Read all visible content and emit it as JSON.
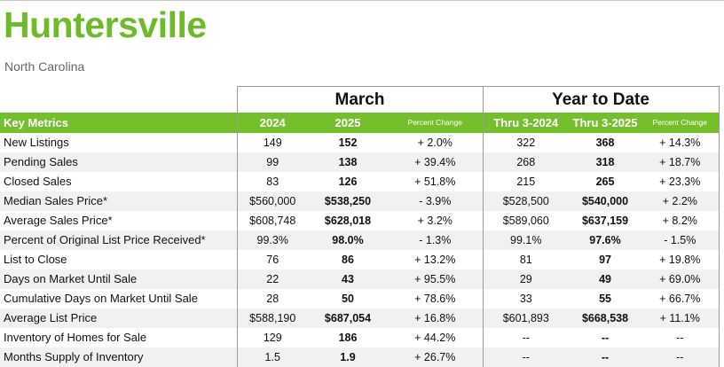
{
  "header": {
    "title": "Huntersville",
    "subtitle": "North Carolina"
  },
  "groups": {
    "march": "March",
    "ytd": "Year to Date"
  },
  "columns": {
    "metric": "Key Metrics",
    "y1": "2024",
    "y2": "2025",
    "pc1": "Percent Change",
    "t1": "Thru 3-2024",
    "t2": "Thru 3-2025",
    "pc2": "Percent Change"
  },
  "colors": {
    "title": "#6dbb2a",
    "header_bar": "#76bf2c",
    "row_alt": "#f1f1f1"
  },
  "rows": [
    {
      "label": "New Listings",
      "y1": "149",
      "y2": "152",
      "pc1": "+ 2.0%",
      "t1": "322",
      "t2": "368",
      "pc2": "+ 14.3%"
    },
    {
      "label": "Pending Sales",
      "y1": "99",
      "y2": "138",
      "pc1": "+ 39.4%",
      "t1": "268",
      "t2": "318",
      "pc2": "+ 18.7%"
    },
    {
      "label": "Closed Sales",
      "y1": "83",
      "y2": "126",
      "pc1": "+ 51.8%",
      "t1": "215",
      "t2": "265",
      "pc2": "+ 23.3%"
    },
    {
      "label": "Median Sales Price*",
      "y1": "$560,000",
      "y2": "$538,250",
      "pc1": "- 3.9%",
      "t1": "$528,500",
      "t2": "$540,000",
      "pc2": "+ 2.2%"
    },
    {
      "label": "Average Sales Price*",
      "y1": "$608,748",
      "y2": "$628,018",
      "pc1": "+ 3.2%",
      "t1": "$589,060",
      "t2": "$637,159",
      "pc2": "+ 8.2%"
    },
    {
      "label": "Percent of Original List Price Received*",
      "y1": "99.3%",
      "y2": "98.0%",
      "pc1": "- 1.3%",
      "t1": "99.1%",
      "t2": "97.6%",
      "pc2": "- 1.5%"
    },
    {
      "label": "List to Close",
      "y1": "76",
      "y2": "86",
      "pc1": "+ 13.2%",
      "t1": "81",
      "t2": "97",
      "pc2": "+ 19.8%"
    },
    {
      "label": "Days on Market Until Sale",
      "y1": "22",
      "y2": "43",
      "pc1": "+ 95.5%",
      "t1": "29",
      "t2": "49",
      "pc2": "+ 69.0%"
    },
    {
      "label": "Cumulative Days on Market Until Sale",
      "y1": "28",
      "y2": "50",
      "pc1": "+ 78.6%",
      "t1": "33",
      "t2": "55",
      "pc2": "+ 66.7%"
    },
    {
      "label": "Average List Price",
      "y1": "$588,190",
      "y2": "$687,054",
      "pc1": "+ 16.8%",
      "t1": "$601,893",
      "t2": "$668,538",
      "pc2": "+ 11.1%"
    },
    {
      "label": "Inventory of Homes for Sale",
      "y1": "129",
      "y2": "186",
      "pc1": "+ 44.2%",
      "t1": "--",
      "t2": "--",
      "pc2": "--"
    },
    {
      "label": "Months Supply of Inventory",
      "y1": "1.5",
      "y2": "1.9",
      "pc1": "+ 26.7%",
      "t1": "--",
      "t2": "--",
      "pc2": "--"
    }
  ]
}
